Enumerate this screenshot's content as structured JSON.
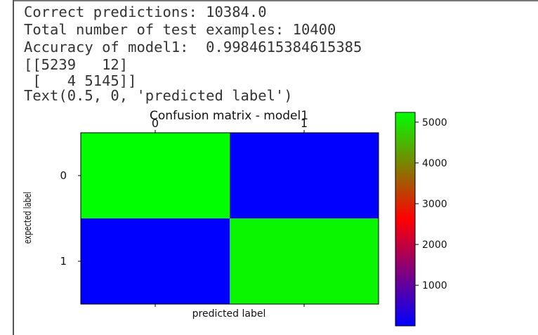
{
  "output_lines": [
    "Correct predictions: 10384.0",
    "Total number of test examples: 10400",
    "Accuracy of model1:  0.9984615384615385",
    "[[5239   12]",
    " [   4 5145]]",
    "Text(0.5, 0, 'predicted label')"
  ],
  "chart_data": {
    "type": "heatmap",
    "title": "Confusion matrix - model1",
    "xlabel": "predicted label",
    "ylabel": "expected label",
    "x_ticks": [
      "0",
      "1"
    ],
    "y_ticks": [
      "0",
      "1"
    ],
    "x_tick_position": "top",
    "matrix": [
      [
        5239,
        12
      ],
      [
        4,
        5145
      ]
    ],
    "colormap": "brg",
    "colormap_colors": [
      "#0000ff",
      "#ff0000",
      "#00ff00"
    ],
    "colorbar_range": [
      4,
      5239
    ],
    "colorbar_ticks": [
      "1000",
      "2000",
      "3000",
      "4000",
      "5000"
    ],
    "grid": false
  }
}
